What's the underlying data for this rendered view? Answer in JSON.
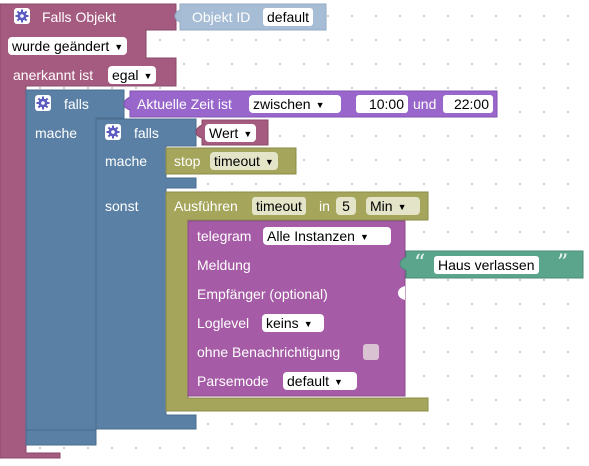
{
  "main_block": {
    "title": "Falls Objekt",
    "object_id_label": "Objekt ID",
    "object_id_value": "default",
    "trigger_option": "wurde geändert",
    "acknowledged_label": "anerkannt ist",
    "acknowledged_option": "egal"
  },
  "if_time": {
    "falls_label": "falls",
    "mache_label": "mache",
    "time_label": "Aktuelle Zeit ist",
    "time_mode": "zwischen",
    "time_start": "10:00",
    "and_label": "und",
    "time_end": "22:00"
  },
  "if_value": {
    "falls_label": "falls",
    "value_option": "Wert",
    "mache_label": "mache",
    "sonst_label": "sonst"
  },
  "stop_block": {
    "label": "stop",
    "option": "timeout"
  },
  "exec_block": {
    "label": "Ausführen",
    "timer_name": "timeout",
    "in_label": "in",
    "delay": "5",
    "unit": "Min"
  },
  "telegram_block": {
    "title": "telegram",
    "instance": "Alle Instanzen",
    "message_label": "Meldung",
    "recipient_label": "Empfänger (optional)",
    "loglevel_label": "Loglevel",
    "loglevel_value": "keins",
    "silent_label": "ohne Benachrichtigung",
    "parsemode_label": "Parsemode",
    "parsemode_value": "default"
  },
  "text_block": {
    "open_quote": "“",
    "text": "Haus verlassen",
    "close_quote": "”"
  },
  "colors": {
    "event_block": "#a55b80",
    "object_id": "#a6bdd5",
    "control": "#5b80a5",
    "logic": "#9966cc",
    "value_input": "#a55b80",
    "timeout": "#a5a55b",
    "telegram": "#a55ba5",
    "text": "#5ba58c"
  }
}
